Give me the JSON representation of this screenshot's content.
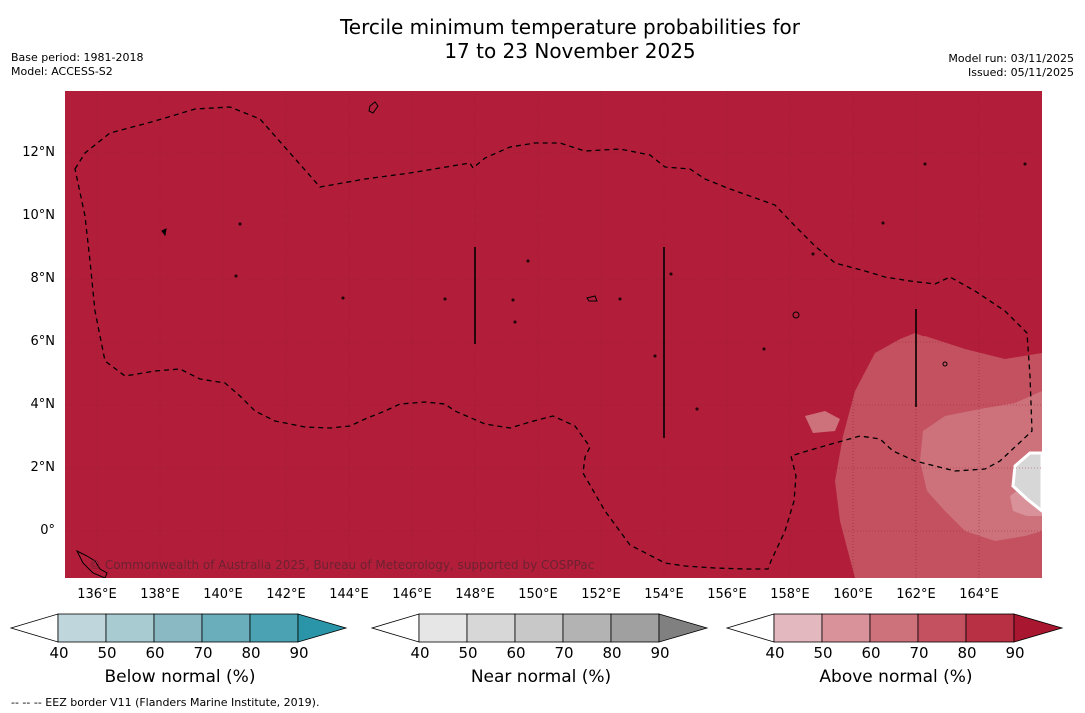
{
  "title": {
    "line1": "Tercile minimum temperature probabilities for",
    "line2": "17 to 23 November 2025"
  },
  "meta_left": {
    "base_period": "Base period: 1981-2018",
    "model": "Model: ACCESS-S2"
  },
  "meta_right": {
    "model_run": "Model run: 03/11/2025",
    "issued": "Issued: 05/11/2025"
  },
  "map": {
    "background_color": "#b21e3a",
    "copyright": "© Commonwealth of Australia 2025, Bureau of Meteorology, supported by COSPPac",
    "lat_labels": [
      "12°N",
      "10°N",
      "8°N",
      "6°N",
      "4°N",
      "2°N",
      "0°"
    ],
    "lon_labels": [
      "136°E",
      "138°E",
      "140°E",
      "142°E",
      "144°E",
      "146°E",
      "148°E",
      "150°E",
      "152°E",
      "154°E",
      "156°E",
      "158°E",
      "160°E",
      "162°E",
      "164°E"
    ]
  },
  "colorbars": [
    {
      "title": "Below normal (%)",
      "ticks": [
        "40",
        "50",
        "60",
        "70",
        "80",
        "90"
      ],
      "colors": [
        "#ffffff",
        "#c0d6dd",
        "#a8cbd2",
        "#8ab9c4",
        "#6aaebb",
        "#4aa2b2",
        "#2a95a9"
      ]
    },
    {
      "title": "Near normal (%)",
      "ticks": [
        "40",
        "50",
        "60",
        "70",
        "80",
        "90"
      ],
      "colors": [
        "#ffffff",
        "#e6e6e6",
        "#d7d7d7",
        "#c8c8c8",
        "#b3b3b3",
        "#a0a0a0",
        "#808080"
      ]
    },
    {
      "title": "Above normal (%)",
      "ticks": [
        "40",
        "50",
        "60",
        "70",
        "80",
        "90"
      ],
      "colors": [
        "#ffffff",
        "#e3b9bf",
        "#d99299",
        "#cd727b",
        "#c3515f",
        "#b83044",
        "#a8162f"
      ]
    }
  ],
  "footnote": "--  --  -- EEZ border V11 (Flanders Marine Institute, 2019)."
}
